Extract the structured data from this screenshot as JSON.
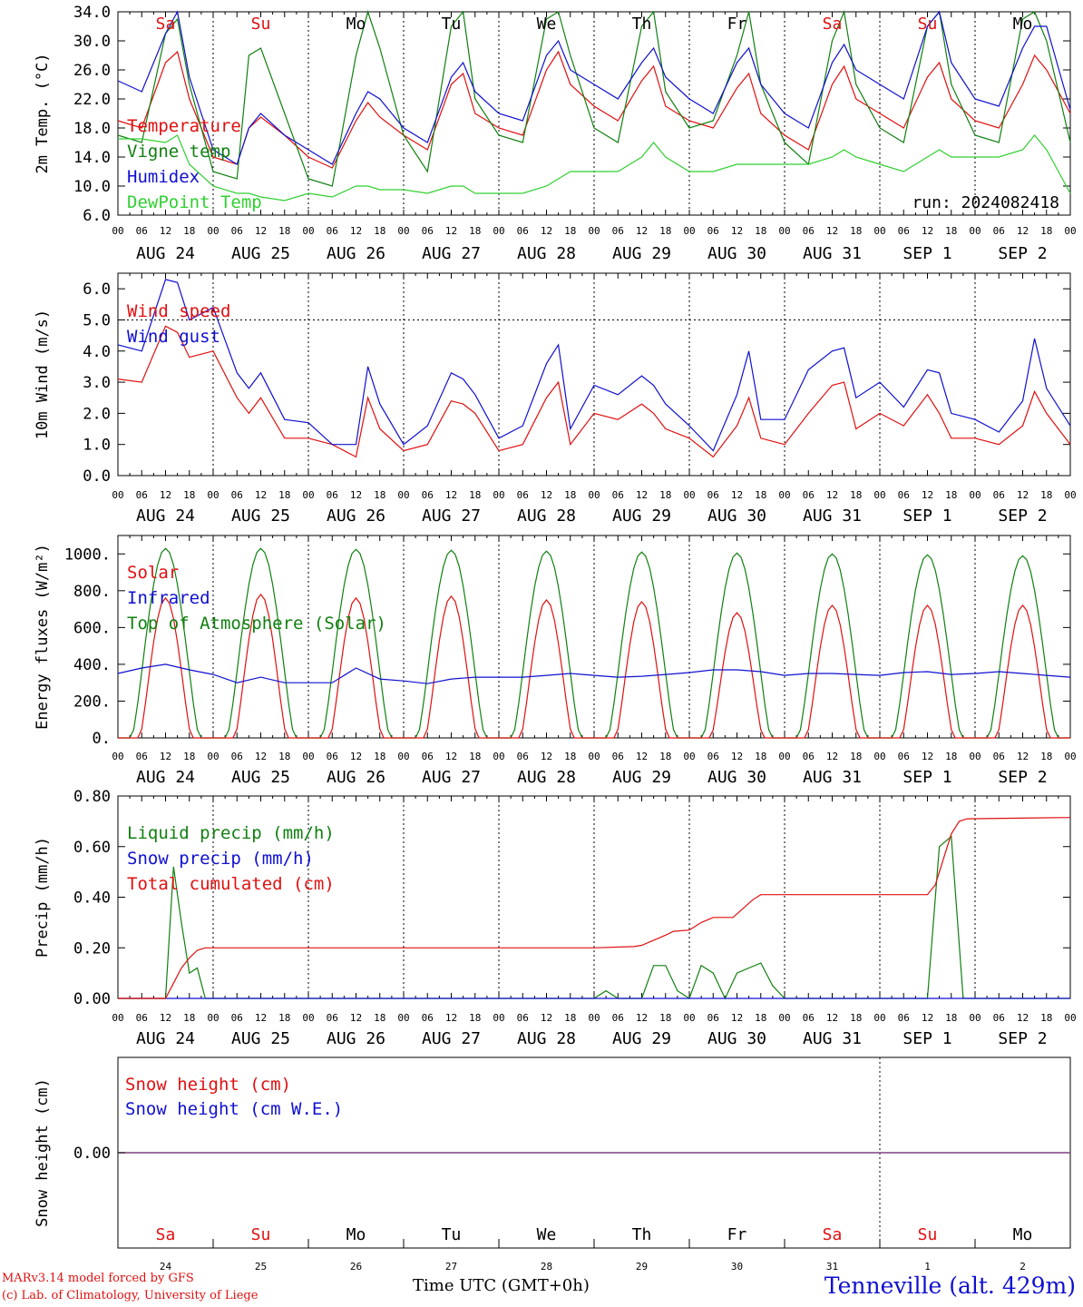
{
  "colors": {
    "red": "#e01010",
    "green": "#108010",
    "blue": "#1010d0",
    "light_green": "#30d030",
    "purple": "#804080",
    "black": "#000000"
  },
  "chart_data": [
    {
      "type": "line",
      "ylabel": "2m Temp. (°C)",
      "ylim": [
        6.0,
        34.0
      ],
      "y_ticks": [
        "6.0",
        "10.0",
        "14.0",
        "18.0",
        "22.0",
        "26.0",
        "30.0",
        "34.0"
      ],
      "y_tick_values": [
        6,
        10,
        14,
        18,
        22,
        26,
        30,
        34
      ],
      "x_tick_labels": [
        "00",
        "06",
        "12",
        "18"
      ],
      "date_labels": [
        "AUG 24",
        "AUG 25",
        "AUG 26",
        "AUG 27",
        "AUG 28",
        "AUG 29",
        "AUG 30",
        "AUG 31",
        "SEP  1",
        "SEP  2"
      ],
      "day_labels": [
        {
          "text": "Sa",
          "color": "red"
        },
        {
          "text": "Su",
          "color": "red"
        },
        {
          "text": "Mo",
          "color": "black"
        },
        {
          "text": "Tu",
          "color": "black"
        },
        {
          "text": "We",
          "color": "black"
        },
        {
          "text": "Th",
          "color": "black"
        },
        {
          "text": "Fr",
          "color": "black"
        },
        {
          "text": "Sa",
          "color": "red"
        },
        {
          "text": "Su",
          "color": "red"
        },
        {
          "text": "Mo",
          "color": "black"
        }
      ],
      "annotation": "run: 2024082418",
      "x_hours": [
        0,
        6,
        12,
        15,
        18,
        24,
        30,
        33,
        36,
        42,
        48,
        54,
        60,
        63,
        66,
        72,
        78,
        84,
        87,
        90,
        96,
        102,
        108,
        111,
        114,
        120,
        126,
        132,
        135,
        138,
        144,
        150,
        156,
        159,
        162,
        168,
        174,
        180,
        183,
        186,
        192,
        198,
        204,
        207,
        210,
        216,
        222,
        228,
        231,
        234,
        240
      ],
      "series": [
        {
          "name": "Temperature",
          "color": "red",
          "values": [
            19.0,
            18,
            27,
            28.5,
            22,
            14,
            13,
            18,
            19.5,
            17,
            14,
            12.5,
            19,
            21.5,
            19.5,
            17,
            15,
            24,
            25.5,
            20,
            18,
            17,
            26,
            28.5,
            24,
            21,
            19,
            24.5,
            26.5,
            21,
            19,
            18,
            23.5,
            25.5,
            20,
            17,
            15,
            24,
            26.5,
            22,
            20,
            18,
            25,
            27,
            22,
            19,
            18,
            24,
            28,
            26,
            20
          ]
        },
        {
          "name": "Vigne temp",
          "color": "green",
          "values": [
            17.0,
            16,
            31,
            33,
            24,
            12,
            11,
            28,
            29,
            20,
            11,
            10,
            28,
            34,
            29,
            17,
            12,
            32,
            34,
            22,
            17,
            16,
            33,
            34,
            28,
            18,
            16,
            32,
            34,
            23,
            18,
            19,
            28,
            34,
            24,
            16,
            13,
            30,
            34,
            24,
            18,
            16,
            32,
            34,
            24,
            17,
            16,
            33,
            34,
            30,
            16
          ]
        },
        {
          "name": "Humidex",
          "color": "blue",
          "values": [
            24.5,
            23,
            31,
            34,
            25,
            15,
            13,
            18,
            20,
            17,
            15,
            13,
            20,
            23,
            22,
            18,
            16,
            25,
            27,
            23,
            20,
            19,
            28,
            30,
            26,
            24,
            22,
            27,
            29,
            25,
            22,
            20,
            27,
            29,
            24,
            20,
            18,
            27,
            29.5,
            26,
            24,
            22,
            32,
            34,
            27,
            22,
            21,
            29,
            32,
            32,
            20.5
          ]
        },
        {
          "name": "DewPoint Temp",
          "color": "light_green",
          "values": [
            16.5,
            16.5,
            16,
            17,
            13,
            10,
            9,
            9,
            8.5,
            8,
            9,
            8.5,
            10,
            10,
            9.5,
            9.5,
            9,
            10,
            10,
            9,
            9,
            9,
            10,
            11,
            12,
            12,
            12,
            14,
            16,
            14,
            12,
            12,
            13,
            13,
            13,
            13,
            13,
            14,
            15,
            14,
            13,
            12,
            14,
            15,
            14,
            14,
            14,
            15,
            17,
            15,
            9
          ]
        }
      ]
    },
    {
      "type": "line",
      "ylabel": "10m Wind (m/s)",
      "ylim": [
        0.0,
        6.5
      ],
      "y_ticks": [
        "0.0",
        "1.0",
        "2.0",
        "3.0",
        "4.0",
        "5.0",
        "6.0"
      ],
      "y_tick_values": [
        0,
        1,
        2,
        3,
        4,
        5,
        6
      ],
      "x_tick_labels": [
        "00",
        "06",
        "12",
        "18"
      ],
      "date_labels": [
        "AUG 24",
        "AUG 25",
        "AUG 26",
        "AUG 27",
        "AUG 28",
        "AUG 29",
        "AUG 30",
        "AUG 31",
        "SEP  1",
        "SEP  2"
      ],
      "reference_line": 5.0,
      "x_hours": [
        0,
        6,
        12,
        15,
        18,
        24,
        30,
        33,
        36,
        42,
        48,
        54,
        60,
        63,
        66,
        72,
        78,
        84,
        87,
        90,
        96,
        102,
        108,
        111,
        114,
        120,
        126,
        132,
        135,
        138,
        144,
        150,
        156,
        159,
        162,
        168,
        174,
        180,
        183,
        186,
        192,
        198,
        204,
        207,
        210,
        216,
        222,
        228,
        231,
        234,
        240
      ],
      "series": [
        {
          "name": "Wind speed",
          "color": "red",
          "values": [
            3.1,
            3.0,
            4.8,
            4.6,
            3.8,
            4.0,
            2.5,
            2.0,
            2.5,
            1.2,
            1.2,
            1.0,
            0.6,
            2.5,
            1.5,
            0.8,
            1.0,
            2.4,
            2.3,
            2.0,
            0.8,
            1.0,
            2.5,
            3.0,
            1.0,
            2.0,
            1.8,
            2.3,
            2.0,
            1.5,
            1.2,
            0.6,
            1.6,
            2.5,
            1.2,
            1.0,
            2.0,
            2.9,
            3.0,
            1.5,
            2.0,
            1.6,
            2.6,
            2.0,
            1.2,
            1.2,
            1.0,
            1.6,
            2.7,
            2.0,
            1.0
          ]
        },
        {
          "name": "Wind gust",
          "color": "blue",
          "values": [
            4.2,
            4.0,
            6.3,
            6.2,
            5.0,
            5.4,
            3.3,
            2.8,
            3.3,
            1.8,
            1.7,
            1.0,
            1.0,
            3.5,
            2.3,
            1.0,
            1.6,
            3.3,
            3.1,
            2.6,
            1.2,
            1.6,
            3.6,
            4.2,
            1.5,
            2.9,
            2.6,
            3.2,
            2.9,
            2.3,
            1.6,
            0.8,
            2.6,
            4.0,
            1.8,
            1.8,
            3.4,
            4.0,
            4.1,
            2.5,
            3.0,
            2.2,
            3.4,
            3.3,
            2.0,
            1.8,
            1.4,
            2.4,
            4.4,
            2.8,
            1.6
          ]
        }
      ]
    },
    {
      "type": "line",
      "ylabel": "Energy fluxes (W/m²)",
      "ylim": [
        0,
        1100
      ],
      "y_ticks": [
        "0.",
        "200.",
        "400.",
        "600.",
        "800.",
        "1000."
      ],
      "y_tick_values": [
        0,
        200,
        400,
        600,
        800,
        1000
      ],
      "x_tick_labels": [
        "00",
        "06",
        "12",
        "18"
      ],
      "date_labels": [
        "AUG 24",
        "AUG 25",
        "AUG 26",
        "AUG 27",
        "AUG 28",
        "AUG 29",
        "AUG 30",
        "AUG 31",
        "SEP  1",
        "SEP  2"
      ],
      "toa_peaks": [
        1030,
        1030,
        1025,
        1020,
        1015,
        1010,
        1005,
        1000,
        995,
        990
      ],
      "solar_peaks": [
        760,
        780,
        760,
        770,
        750,
        740,
        680,
        720,
        720,
        720
      ],
      "infrared_values": [
        350,
        380,
        400,
        370,
        345,
        300,
        330,
        300,
        300,
        300,
        380,
        320,
        310,
        295,
        320,
        330,
        330,
        330,
        340,
        350,
        340,
        330,
        335,
        345,
        355,
        370,
        370,
        360,
        340,
        350,
        350,
        345,
        340,
        355,
        360,
        345,
        350,
        360,
        350,
        340,
        330
      ],
      "series": [
        {
          "name": "Solar",
          "color": "red"
        },
        {
          "name": "Infrared",
          "color": "blue"
        },
        {
          "name": "Top of Atmosphere (Solar)",
          "color": "green"
        }
      ]
    },
    {
      "type": "line",
      "ylabel": "Precip (mm/h)",
      "ylim": [
        0.0,
        0.8
      ],
      "y_ticks": [
        "0.00",
        "0.20",
        "0.40",
        "0.60",
        "0.80"
      ],
      "y_tick_values": [
        0,
        0.2,
        0.4,
        0.6,
        0.8
      ],
      "x_tick_labels": [
        "00",
        "06",
        "12",
        "18"
      ],
      "date_labels": [
        "AUG 24",
        "AUG 25",
        "AUG 26",
        "AUG 27",
        "AUG 28",
        "AUG 29",
        "AUG 30",
        "AUG 31",
        "SEP  1",
        "SEP  2"
      ],
      "series": [
        {
          "name": "Liquid precip (mm/h)",
          "color": "green",
          "x_hours": [
            0,
            12,
            14,
            16,
            18,
            20,
            22,
            24,
            120,
            123,
            126,
            132,
            135,
            138,
            141,
            144,
            147,
            150,
            153,
            156,
            159,
            162,
            165,
            168,
            174,
            204,
            207,
            210,
            213,
            216,
            240
          ],
          "values": [
            0.0,
            0.0,
            0.52,
            0.3,
            0.1,
            0.12,
            0.0,
            0.0,
            0.0,
            0.03,
            0.0,
            0.0,
            0.13,
            0.13,
            0.03,
            0.0,
            0.13,
            0.1,
            0.0,
            0.1,
            0.12,
            0.14,
            0.05,
            0.0,
            0.0,
            0.0,
            0.6,
            0.64,
            0.0,
            0.0,
            0.0
          ]
        },
        {
          "name": "Snow precip (mm/h)",
          "color": "blue",
          "x_hours": [
            0,
            240
          ],
          "values": [
            0.0,
            0.0
          ]
        },
        {
          "name": "Total cumulated (cm)",
          "color": "red",
          "x_hours": [
            0,
            12,
            14,
            16,
            18,
            20,
            22,
            24,
            120,
            130,
            132,
            138,
            140,
            144,
            147,
            150,
            155,
            160,
            162,
            204,
            206,
            208,
            210,
            212,
            214,
            240
          ],
          "values": [
            0.0,
            0.0,
            0.06,
            0.12,
            0.16,
            0.19,
            0.2,
            0.2,
            0.2,
            0.205,
            0.21,
            0.25,
            0.265,
            0.27,
            0.3,
            0.32,
            0.32,
            0.39,
            0.41,
            0.41,
            0.45,
            0.55,
            0.65,
            0.7,
            0.71,
            0.715
          ]
        }
      ]
    },
    {
      "type": "line",
      "ylabel": "Snow height (cm)",
      "y_ticks": [
        "0.00"
      ],
      "series": [
        {
          "name": "Snow height (cm)",
          "color": "red"
        },
        {
          "name": "Snow height (cm W.E.)",
          "color": "blue"
        }
      ],
      "day_labels": [
        {
          "text": "Sa",
          "color": "red"
        },
        {
          "text": "Su",
          "color": "red"
        },
        {
          "text": "Mo",
          "color": "black"
        },
        {
          "text": "Tu",
          "color": "black"
        },
        {
          "text": "We",
          "color": "black"
        },
        {
          "text": "Th",
          "color": "black"
        },
        {
          "text": "Fr",
          "color": "black"
        },
        {
          "text": "Sa",
          "color": "red"
        },
        {
          "text": "Su",
          "color": "red"
        },
        {
          "text": "Mo",
          "color": "black"
        }
      ],
      "day_numbers": [
        "24",
        "25",
        "26",
        "27",
        "28",
        "29",
        "30",
        "31",
        "1",
        "2"
      ]
    }
  ],
  "footer": {
    "model_credit": "MARv3.14 model forced by GFS",
    "lab_credit": "(c) Lab. of Climatology, University of Liege",
    "xlabel": "Time UTC (GMT+0h)",
    "station": "Tenneville (alt. 429m)"
  }
}
